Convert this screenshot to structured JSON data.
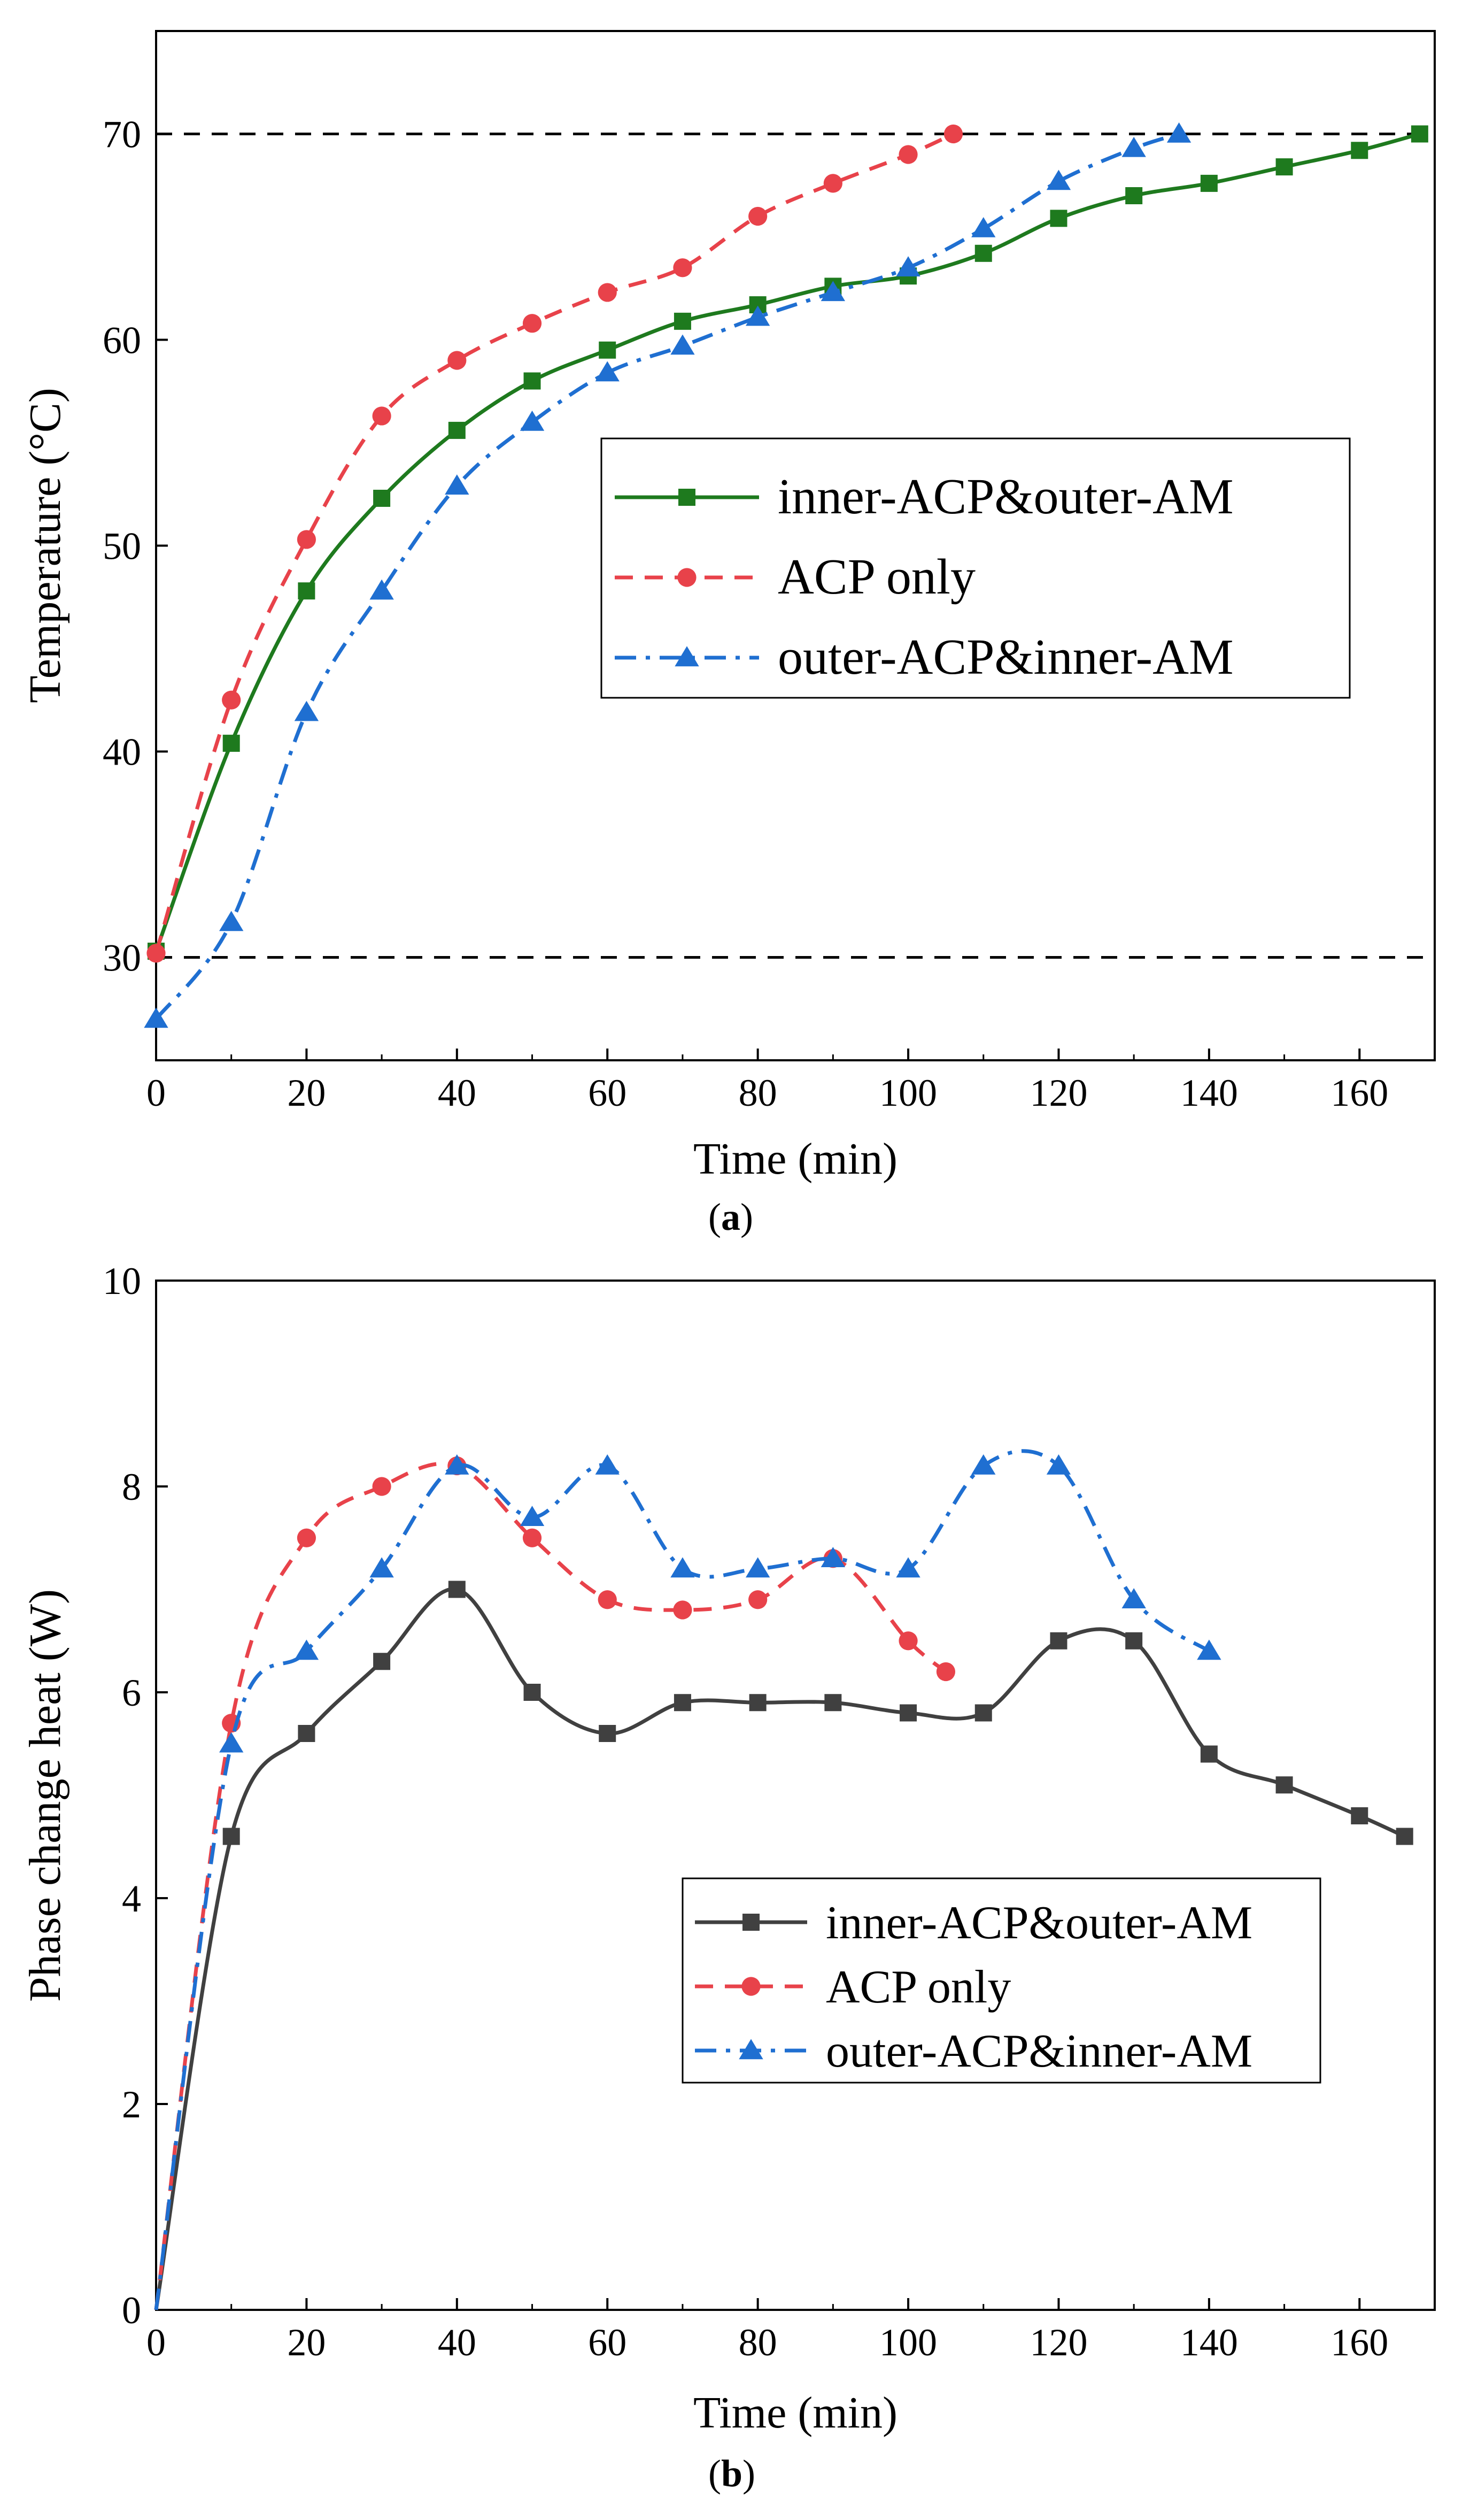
{
  "colors": {
    "green": "#1e7a1e",
    "red": "#e8424a",
    "blue": "#1f6fd1",
    "gray": "#404040",
    "dash": "#000000"
  },
  "chart_data": [
    {
      "id": "a",
      "type": "line",
      "panel_label": "a",
      "title": "",
      "xlabel": "Time (min)",
      "ylabel": "Temperature (°C)",
      "xlim": [
        0,
        170
      ],
      "ylim": [
        25,
        75
      ],
      "xticks": [
        0,
        20,
        40,
        60,
        80,
        100,
        120,
        140,
        160
      ],
      "yticks": [
        30,
        40,
        50,
        60,
        70
      ],
      "reference_lines": [
        30,
        70
      ],
      "legend_position": "center-right",
      "series": [
        {
          "name": "inner-ACP&outer-AM",
          "color": "#1e7a1e",
          "line": "solid",
          "marker": "square",
          "x": [
            0,
            10,
            20,
            30,
            40,
            50,
            60,
            70,
            80,
            90,
            100,
            110,
            120,
            130,
            140,
            150,
            160,
            168
          ],
          "y": [
            30.3,
            40.4,
            47.8,
            52.3,
            55.6,
            58.0,
            59.5,
            60.9,
            61.7,
            62.6,
            63.1,
            64.2,
            65.9,
            67.0,
            67.6,
            68.4,
            69.2,
            70.0
          ]
        },
        {
          "name": "ACP only",
          "color": "#e8424a",
          "line": "dashed",
          "marker": "circle",
          "x": [
            0,
            10,
            20,
            30,
            40,
            50,
            60,
            70,
            80,
            90,
            100,
            106
          ],
          "y": [
            30.2,
            42.5,
            50.3,
            56.3,
            59.0,
            60.8,
            62.3,
            63.5,
            66.0,
            67.6,
            69.0,
            70.0
          ]
        },
        {
          "name": "outer-ACP&inner-AM",
          "color": "#1f6fd1",
          "line": "dashdot",
          "marker": "triangle",
          "x": [
            0,
            10,
            20,
            30,
            40,
            50,
            60,
            70,
            80,
            90,
            100,
            110,
            120,
            130,
            136
          ],
          "y": [
            27.0,
            31.7,
            41.9,
            47.8,
            52.9,
            56.0,
            58.4,
            59.7,
            61.1,
            62.3,
            63.5,
            65.4,
            67.7,
            69.3,
            70.0
          ]
        }
      ]
    },
    {
      "id": "b",
      "type": "line",
      "panel_label": "b",
      "title": "",
      "xlabel": "Time (min)",
      "ylabel": "Phase change heat (W)",
      "xlim": [
        0,
        170
      ],
      "ylim": [
        0,
        10
      ],
      "xticks": [
        0,
        20,
        40,
        60,
        80,
        100,
        120,
        140,
        160
      ],
      "yticks": [
        0,
        2,
        4,
        6,
        8,
        10
      ],
      "legend_position": "lower-right",
      "series": [
        {
          "name": "inner-ACP&outer-AM",
          "color": "#404040",
          "line": "solid",
          "marker": "square",
          "x": [
            0,
            10,
            20,
            30,
            40,
            50,
            60,
            70,
            80,
            90,
            100,
            110,
            120,
            130,
            140,
            150,
            160,
            166
          ],
          "y": [
            0,
            4.6,
            5.6,
            6.3,
            7.0,
            6.0,
            5.6,
            5.9,
            5.9,
            5.9,
            5.8,
            5.8,
            6.5,
            6.5,
            5.4,
            5.1,
            4.8,
            4.6
          ]
        },
        {
          "name": "ACP only",
          "color": "#e8424a",
          "line": "dashed",
          "marker": "circle",
          "x": [
            0,
            10,
            20,
            30,
            40,
            50,
            60,
            70,
            80,
            90,
            100,
            105
          ],
          "y": [
            0,
            5.7,
            7.5,
            8.0,
            8.2,
            7.5,
            6.9,
            6.8,
            6.9,
            7.3,
            6.5,
            6.2
          ]
        },
        {
          "name": "outer-ACP&inner-AM",
          "color": "#1f6fd1",
          "line": "dashdot",
          "marker": "triangle",
          "x": [
            0,
            10,
            20,
            30,
            40,
            50,
            60,
            70,
            80,
            90,
            100,
            110,
            120,
            130,
            140
          ],
          "y": [
            0,
            5.5,
            6.4,
            7.2,
            8.2,
            7.7,
            8.2,
            7.2,
            7.2,
            7.3,
            7.2,
            8.2,
            8.2,
            6.9,
            6.4
          ]
        }
      ]
    }
  ]
}
